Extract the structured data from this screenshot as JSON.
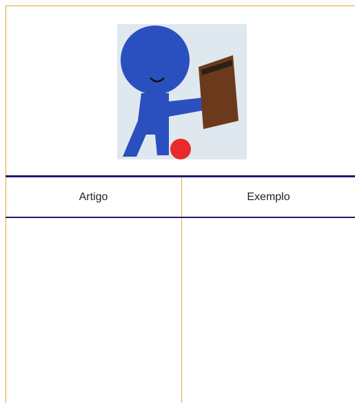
{
  "table": {
    "headers": [
      "Artigo",
      "Exemplo"
    ]
  }
}
